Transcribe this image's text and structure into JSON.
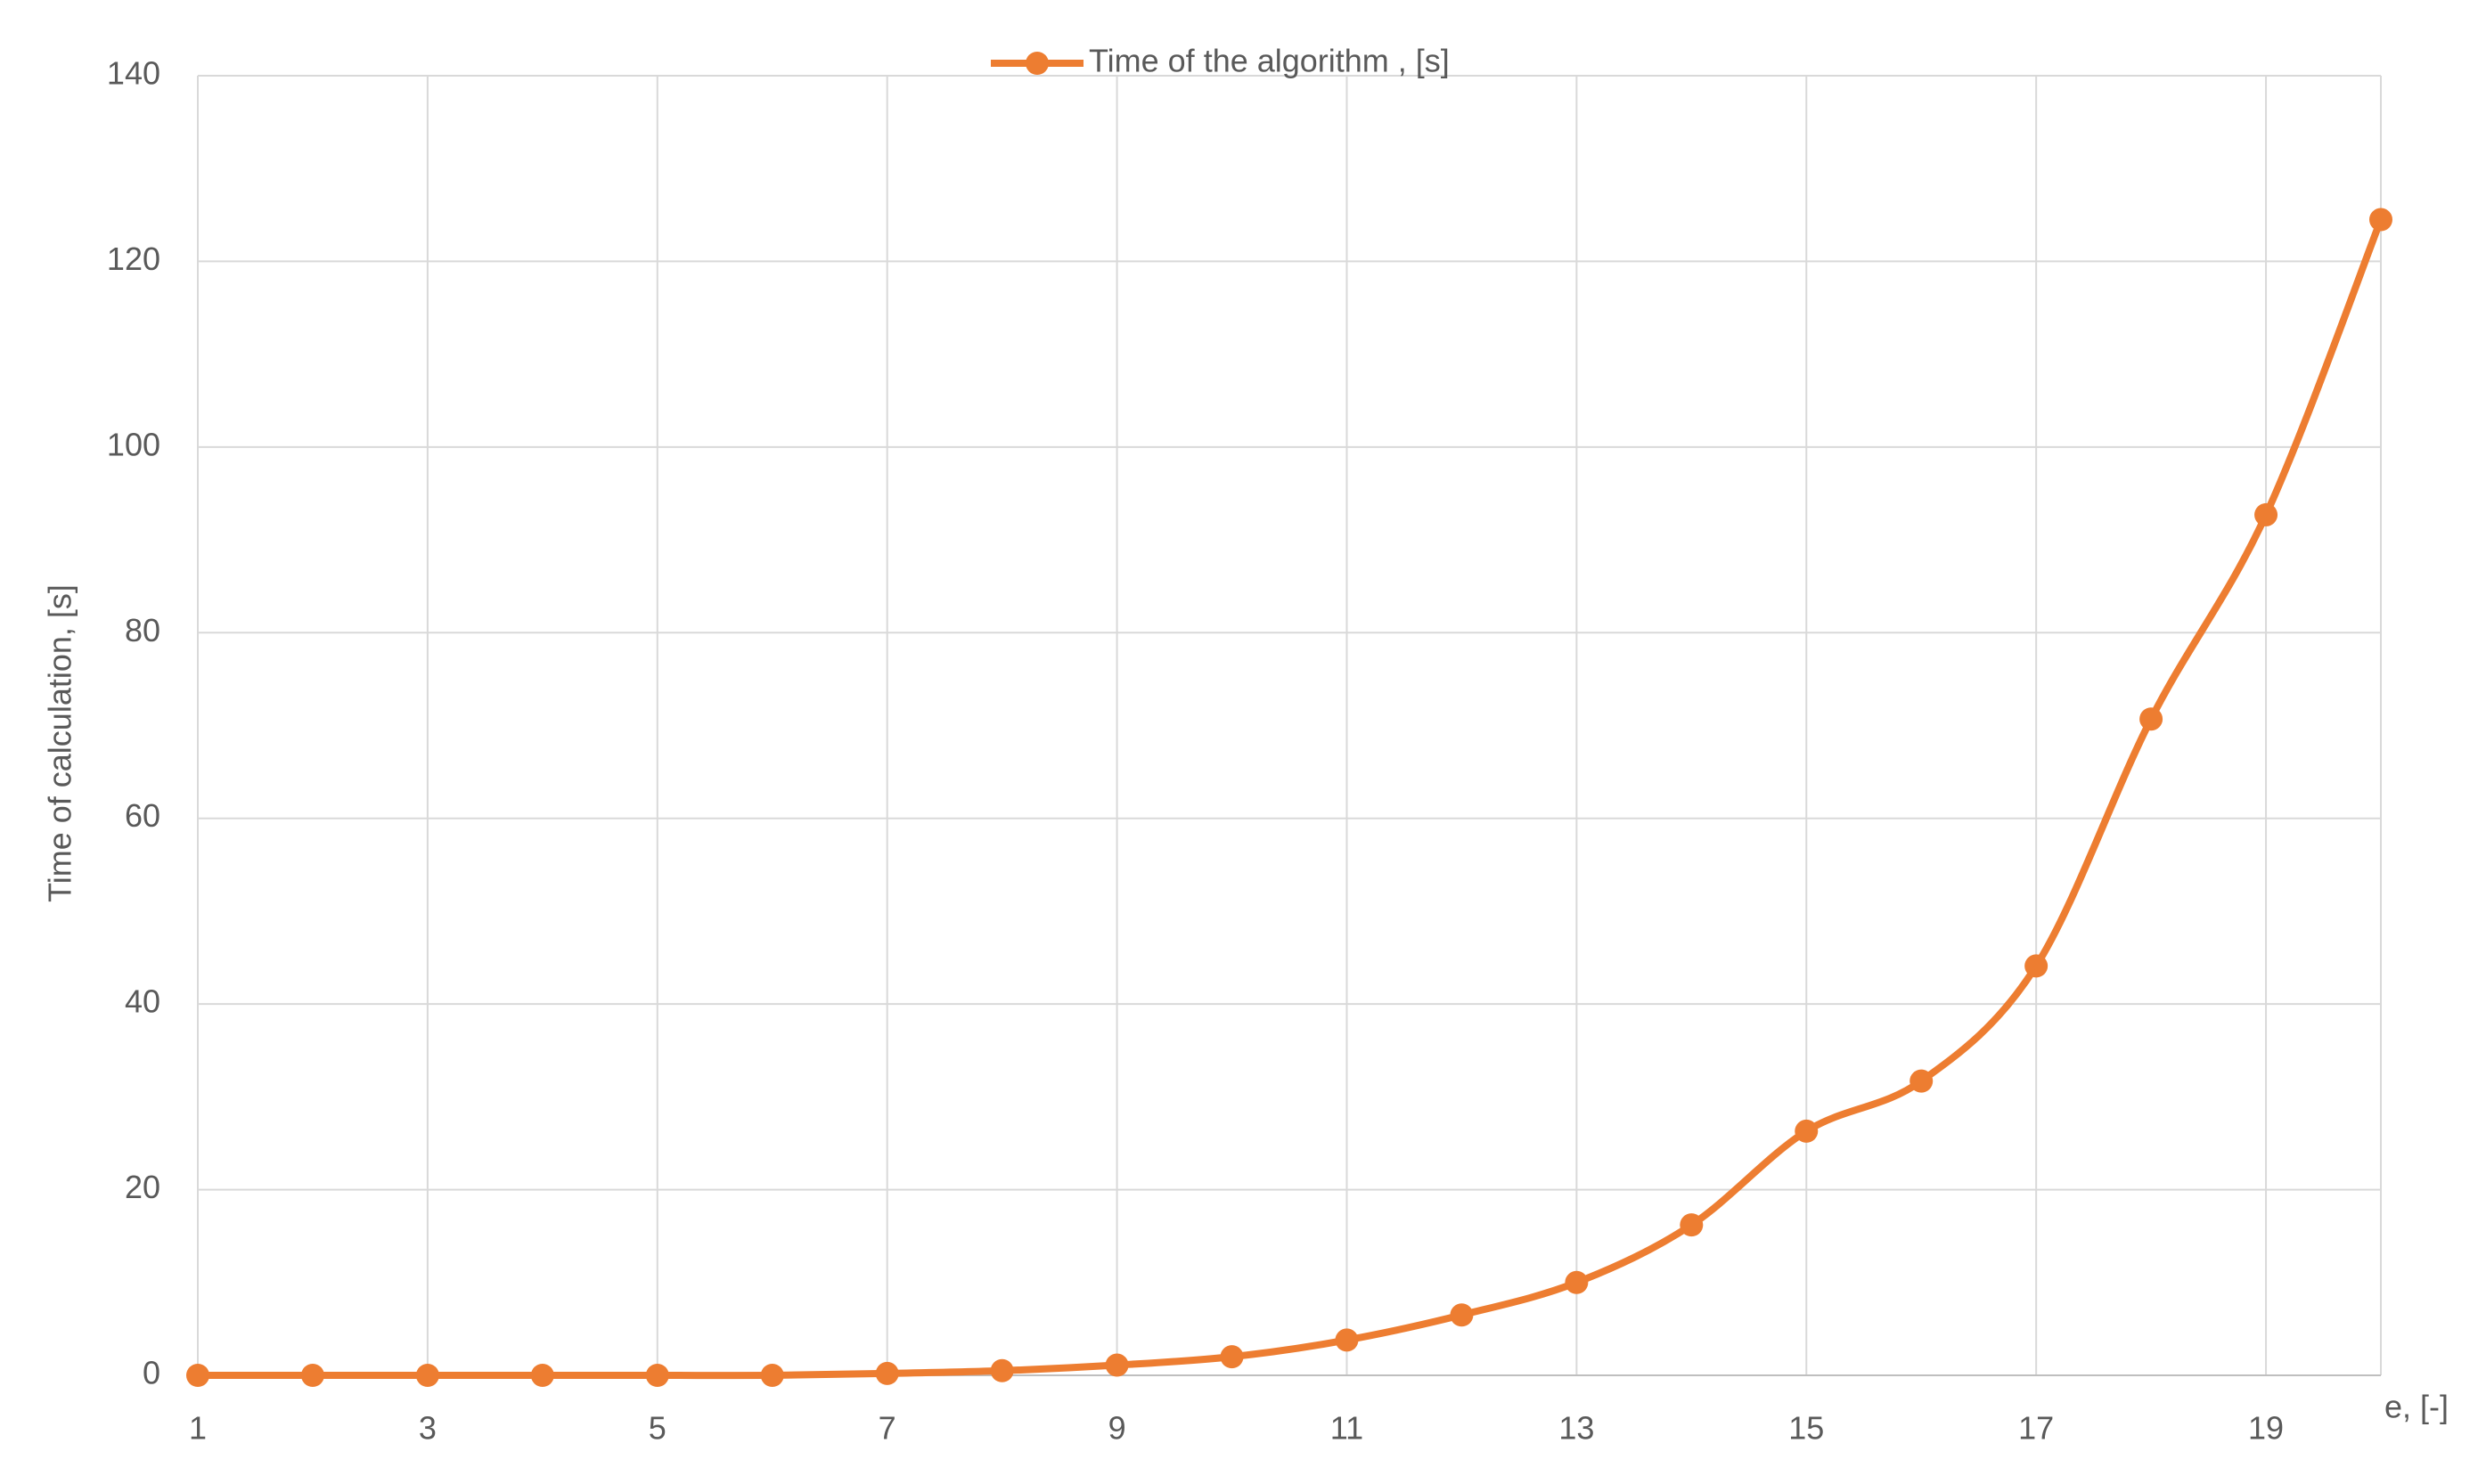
{
  "chart_data": {
    "type": "line",
    "legend_label": "Time of the algorithm , [s]",
    "xlabel": "e, [-]",
    "ylabel": "Time of calculation, [s]",
    "x": [
      1,
      2,
      3,
      4,
      5,
      6,
      7,
      8,
      9,
      10,
      11,
      12,
      13,
      14,
      15,
      16,
      17,
      18,
      19,
      20
    ],
    "series": [
      {
        "name": "Time of the algorithm , [s]",
        "color": "#ed7d31",
        "values": [
          0,
          0,
          0,
          0,
          0,
          0,
          0.2,
          0.5,
          1.1,
          2,
          3.8,
          6.5,
          10,
          16.2,
          26.3,
          31.7,
          44.1,
          70.7,
          92.7,
          124.5
        ]
      }
    ],
    "xlim": [
      1,
      20
    ],
    "xticks": [
      1,
      3,
      5,
      7,
      9,
      11,
      13,
      15,
      17,
      19
    ],
    "ylim": [
      0,
      140
    ],
    "yticks": [
      0,
      20,
      40,
      60,
      80,
      100,
      120,
      140
    ],
    "grid": true,
    "legend": "top"
  }
}
